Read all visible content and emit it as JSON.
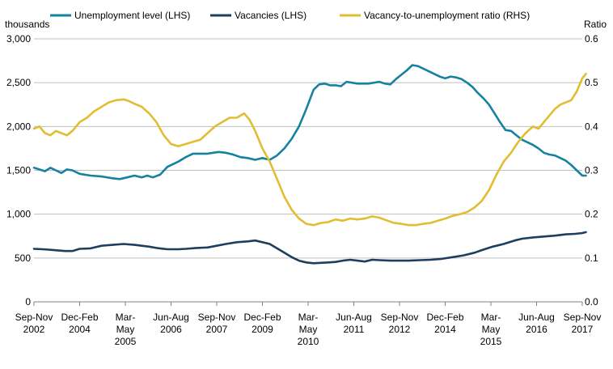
{
  "chart_data": {
    "type": "line",
    "colors": {
      "unemployment": "#1582a0",
      "vacancies": "#1d3e5f",
      "ratio": "#e2bd33",
      "grid": "#bfbfbf"
    },
    "legend": [
      "Unemployment level (LHS)",
      "Vacancies (LHS)",
      "Vacancy-to-unemployment ratio (RHS)"
    ],
    "legend_position": "top",
    "left_axis": {
      "title": "thousands",
      "range": [
        0,
        3000
      ],
      "ticks": [
        "0",
        "500",
        "1,000",
        "1,500",
        "2,000",
        "2,500",
        "3,000"
      ]
    },
    "right_axis": {
      "title": "Ratio",
      "range": [
        0,
        0.6
      ],
      "ticks": [
        "0.0",
        "0.1",
        "0.2",
        "0.3",
        "0.4",
        "0.5",
        "0.6"
      ]
    },
    "grid": true,
    "x_range": [
      2002.75,
      2017.75
    ],
    "x_ticks": [
      {
        "x": 2002.75,
        "lines": [
          "Sep-Nov",
          "2002"
        ]
      },
      {
        "x": 2004.0,
        "lines": [
          "Dec-Feb",
          "2004"
        ]
      },
      {
        "x": 2005.25,
        "lines": [
          "Mar-",
          "May",
          "2005"
        ]
      },
      {
        "x": 2006.5,
        "lines": [
          "Jun-Aug",
          "2006"
        ]
      },
      {
        "x": 2007.75,
        "lines": [
          "Sep-Nov",
          "2007"
        ]
      },
      {
        "x": 2009.0,
        "lines": [
          "Dec-Feb",
          "2009"
        ]
      },
      {
        "x": 2010.25,
        "lines": [
          "Mar-",
          "May",
          "2010"
        ]
      },
      {
        "x": 2011.5,
        "lines": [
          "Jun-Aug",
          "2011"
        ]
      },
      {
        "x": 2012.75,
        "lines": [
          "Sep-Nov",
          "2012"
        ]
      },
      {
        "x": 2014.0,
        "lines": [
          "Dec-Feb",
          "2014"
        ]
      },
      {
        "x": 2015.25,
        "lines": [
          "Mar-",
          "May",
          "2015"
        ]
      },
      {
        "x": 2016.5,
        "lines": [
          "Jun-Aug",
          "2016"
        ]
      },
      {
        "x": 2017.75,
        "lines": [
          "Sep-Nov",
          "2017"
        ]
      }
    ],
    "series": [
      {
        "name": "Unemployment level (LHS)",
        "axis": "left",
        "points": [
          [
            2002.75,
            1530
          ],
          [
            2002.9,
            1510
          ],
          [
            2003.05,
            1490
          ],
          [
            2003.2,
            1530
          ],
          [
            2003.35,
            1500
          ],
          [
            2003.5,
            1470
          ],
          [
            2003.65,
            1510
          ],
          [
            2003.8,
            1500
          ],
          [
            2004.0,
            1460
          ],
          [
            2004.3,
            1440
          ],
          [
            2004.6,
            1430
          ],
          [
            2004.9,
            1410
          ],
          [
            2005.1,
            1400
          ],
          [
            2005.3,
            1420
          ],
          [
            2005.5,
            1440
          ],
          [
            2005.7,
            1420
          ],
          [
            2005.85,
            1440
          ],
          [
            2006.0,
            1420
          ],
          [
            2006.2,
            1450
          ],
          [
            2006.4,
            1540
          ],
          [
            2006.55,
            1570
          ],
          [
            2006.7,
            1600
          ],
          [
            2006.9,
            1650
          ],
          [
            2007.1,
            1690
          ],
          [
            2007.3,
            1690
          ],
          [
            2007.5,
            1690
          ],
          [
            2007.65,
            1700
          ],
          [
            2007.8,
            1710
          ],
          [
            2008.0,
            1700
          ],
          [
            2008.2,
            1680
          ],
          [
            2008.4,
            1650
          ],
          [
            2008.6,
            1640
          ],
          [
            2008.8,
            1620
          ],
          [
            2009.0,
            1640
          ],
          [
            2009.2,
            1620
          ],
          [
            2009.4,
            1670
          ],
          [
            2009.6,
            1750
          ],
          [
            2009.8,
            1860
          ],
          [
            2010.0,
            2000
          ],
          [
            2010.2,
            2200
          ],
          [
            2010.4,
            2420
          ],
          [
            2010.55,
            2480
          ],
          [
            2010.7,
            2490
          ],
          [
            2010.85,
            2470
          ],
          [
            2011.0,
            2470
          ],
          [
            2011.15,
            2460
          ],
          [
            2011.3,
            2510
          ],
          [
            2011.45,
            2500
          ],
          [
            2011.6,
            2490
          ],
          [
            2011.75,
            2490
          ],
          [
            2011.9,
            2490
          ],
          [
            2012.05,
            2500
          ],
          [
            2012.2,
            2510
          ],
          [
            2012.35,
            2490
          ],
          [
            2012.5,
            2480
          ],
          [
            2012.65,
            2540
          ],
          [
            2012.8,
            2590
          ],
          [
            2012.95,
            2640
          ],
          [
            2013.1,
            2700
          ],
          [
            2013.25,
            2690
          ],
          [
            2013.4,
            2660
          ],
          [
            2013.55,
            2630
          ],
          [
            2013.7,
            2600
          ],
          [
            2013.85,
            2570
          ],
          [
            2014.0,
            2550
          ],
          [
            2014.15,
            2570
          ],
          [
            2014.3,
            2560
          ],
          [
            2014.45,
            2540
          ],
          [
            2014.6,
            2500
          ],
          [
            2014.75,
            2450
          ],
          [
            2014.9,
            2380
          ],
          [
            2015.05,
            2320
          ],
          [
            2015.2,
            2250
          ],
          [
            2015.35,
            2150
          ],
          [
            2015.5,
            2050
          ],
          [
            2015.65,
            1960
          ],
          [
            2015.8,
            1950
          ],
          [
            2015.95,
            1900
          ],
          [
            2016.1,
            1850
          ],
          [
            2016.25,
            1820
          ],
          [
            2016.4,
            1790
          ],
          [
            2016.55,
            1750
          ],
          [
            2016.7,
            1700
          ],
          [
            2016.85,
            1680
          ],
          [
            2017.0,
            1670
          ],
          [
            2017.15,
            1640
          ],
          [
            2017.3,
            1610
          ],
          [
            2017.45,
            1560
          ],
          [
            2017.6,
            1500
          ],
          [
            2017.75,
            1440
          ],
          [
            2017.85,
            1440
          ]
        ]
      },
      {
        "name": "Vacancies (LHS)",
        "axis": "left",
        "points": [
          [
            2002.75,
            605
          ],
          [
            2003.0,
            600
          ],
          [
            2003.3,
            590
          ],
          [
            2003.6,
            580
          ],
          [
            2003.8,
            580
          ],
          [
            2004.0,
            605
          ],
          [
            2004.3,
            610
          ],
          [
            2004.6,
            640
          ],
          [
            2004.9,
            650
          ],
          [
            2005.2,
            660
          ],
          [
            2005.5,
            650
          ],
          [
            2005.7,
            640
          ],
          [
            2005.9,
            630
          ],
          [
            2006.1,
            615
          ],
          [
            2006.4,
            600
          ],
          [
            2006.7,
            600
          ],
          [
            2006.9,
            605
          ],
          [
            2007.2,
            615
          ],
          [
            2007.5,
            620
          ],
          [
            2007.75,
            640
          ],
          [
            2008.0,
            660
          ],
          [
            2008.3,
            680
          ],
          [
            2008.6,
            690
          ],
          [
            2008.8,
            700
          ],
          [
            2009.0,
            680
          ],
          [
            2009.2,
            660
          ],
          [
            2009.4,
            610
          ],
          [
            2009.6,
            560
          ],
          [
            2009.8,
            510
          ],
          [
            2010.0,
            470
          ],
          [
            2010.2,
            450
          ],
          [
            2010.4,
            440
          ],
          [
            2010.6,
            445
          ],
          [
            2010.8,
            450
          ],
          [
            2011.0,
            455
          ],
          [
            2011.2,
            470
          ],
          [
            2011.4,
            480
          ],
          [
            2011.6,
            470
          ],
          [
            2011.8,
            460
          ],
          [
            2012.0,
            480
          ],
          [
            2012.2,
            475
          ],
          [
            2012.5,
            470
          ],
          [
            2012.8,
            470
          ],
          [
            2013.0,
            470
          ],
          [
            2013.3,
            475
          ],
          [
            2013.6,
            480
          ],
          [
            2013.9,
            490
          ],
          [
            2014.2,
            510
          ],
          [
            2014.5,
            530
          ],
          [
            2014.8,
            560
          ],
          [
            2015.0,
            590
          ],
          [
            2015.3,
            630
          ],
          [
            2015.6,
            660
          ],
          [
            2015.9,
            700
          ],
          [
            2016.1,
            720
          ],
          [
            2016.4,
            735
          ],
          [
            2016.7,
            745
          ],
          [
            2017.0,
            755
          ],
          [
            2017.3,
            770
          ],
          [
            2017.55,
            775
          ],
          [
            2017.75,
            785
          ],
          [
            2017.85,
            795
          ]
        ]
      },
      {
        "name": "Vacancy-to-unemployment ratio (RHS)",
        "axis": "right",
        "points": [
          [
            2002.75,
            0.395
          ],
          [
            2002.9,
            0.4
          ],
          [
            2003.05,
            0.385
          ],
          [
            2003.2,
            0.38
          ],
          [
            2003.35,
            0.39
          ],
          [
            2003.5,
            0.385
          ],
          [
            2003.65,
            0.38
          ],
          [
            2003.8,
            0.39
          ],
          [
            2004.0,
            0.41
          ],
          [
            2004.2,
            0.42
          ],
          [
            2004.4,
            0.435
          ],
          [
            2004.6,
            0.445
          ],
          [
            2004.8,
            0.455
          ],
          [
            2005.0,
            0.46
          ],
          [
            2005.2,
            0.462
          ],
          [
            2005.35,
            0.458
          ],
          [
            2005.5,
            0.452
          ],
          [
            2005.7,
            0.445
          ],
          [
            2005.9,
            0.43
          ],
          [
            2006.1,
            0.41
          ],
          [
            2006.3,
            0.38
          ],
          [
            2006.5,
            0.36
          ],
          [
            2006.7,
            0.355
          ],
          [
            2006.9,
            0.36
          ],
          [
            2007.1,
            0.365
          ],
          [
            2007.3,
            0.37
          ],
          [
            2007.5,
            0.385
          ],
          [
            2007.7,
            0.4
          ],
          [
            2007.9,
            0.41
          ],
          [
            2008.1,
            0.42
          ],
          [
            2008.3,
            0.42
          ],
          [
            2008.5,
            0.43
          ],
          [
            2008.65,
            0.415
          ],
          [
            2008.8,
            0.39
          ],
          [
            2009.0,
            0.35
          ],
          [
            2009.2,
            0.32
          ],
          [
            2009.4,
            0.28
          ],
          [
            2009.6,
            0.24
          ],
          [
            2009.8,
            0.21
          ],
          [
            2010.0,
            0.19
          ],
          [
            2010.2,
            0.178
          ],
          [
            2010.4,
            0.175
          ],
          [
            2010.6,
            0.18
          ],
          [
            2010.8,
            0.182
          ],
          [
            2011.0,
            0.188
          ],
          [
            2011.2,
            0.185
          ],
          [
            2011.4,
            0.19
          ],
          [
            2011.6,
            0.188
          ],
          [
            2011.8,
            0.19
          ],
          [
            2012.0,
            0.195
          ],
          [
            2012.2,
            0.192
          ],
          [
            2012.4,
            0.186
          ],
          [
            2012.6,
            0.18
          ],
          [
            2012.8,
            0.178
          ],
          [
            2013.0,
            0.175
          ],
          [
            2013.2,
            0.175
          ],
          [
            2013.4,
            0.178
          ],
          [
            2013.6,
            0.18
          ],
          [
            2013.8,
            0.185
          ],
          [
            2014.0,
            0.19
          ],
          [
            2014.2,
            0.196
          ],
          [
            2014.4,
            0.2
          ],
          [
            2014.6,
            0.205
          ],
          [
            2014.8,
            0.215
          ],
          [
            2015.0,
            0.23
          ],
          [
            2015.2,
            0.255
          ],
          [
            2015.4,
            0.29
          ],
          [
            2015.6,
            0.32
          ],
          [
            2015.8,
            0.34
          ],
          [
            2016.0,
            0.365
          ],
          [
            2016.2,
            0.385
          ],
          [
            2016.4,
            0.4
          ],
          [
            2016.55,
            0.395
          ],
          [
            2016.7,
            0.41
          ],
          [
            2016.85,
            0.425
          ],
          [
            2017.0,
            0.44
          ],
          [
            2017.15,
            0.45
          ],
          [
            2017.3,
            0.455
          ],
          [
            2017.45,
            0.46
          ],
          [
            2017.6,
            0.48
          ],
          [
            2017.7,
            0.5
          ],
          [
            2017.75,
            0.51
          ],
          [
            2017.85,
            0.52
          ]
        ]
      }
    ]
  }
}
